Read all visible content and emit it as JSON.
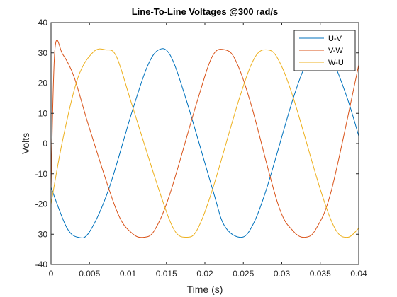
{
  "chart_data": {
    "type": "line",
    "title": "Line-To-Line Voltages @300 rad/s",
    "xlabel": "Time (s)",
    "ylabel": "Volts",
    "xlim": [
      0,
      0.04
    ],
    "ylim": [
      -40,
      40
    ],
    "xticks": [
      0,
      0.005,
      0.01,
      0.015,
      0.02,
      0.025,
      0.03,
      0.035,
      0.04
    ],
    "xtick_labels": [
      "0",
      "0.005",
      "0.01",
      "0.015",
      "0.02",
      "0.025",
      "0.03",
      "0.035",
      "0.04"
    ],
    "yticks": [
      -40,
      -30,
      -20,
      -10,
      0,
      10,
      20,
      30,
      40
    ],
    "ytick_labels": [
      "-40",
      "-30",
      "-20",
      "-10",
      "0",
      "10",
      "20",
      "30",
      "40"
    ],
    "grid": false,
    "legend_position": "top-right",
    "series": [
      {
        "name": "U-V",
        "color": "#0072BD",
        "x": [
          0,
          0.002,
          0.0035,
          0.005,
          0.0075,
          0.0105,
          0.0125,
          0.014,
          0.0155,
          0.0175,
          0.021,
          0.0225,
          0.0245,
          0.026,
          0.028,
          0.0315,
          0.0335,
          0.035,
          0.0365,
          0.0385,
          0.04
        ],
        "y": [
          -14.5,
          -27.6,
          -31.0,
          -29.2,
          -15.1,
          10.3,
          25.4,
          31.0,
          29.2,
          15.1,
          -15.1,
          -27.0,
          -31.0,
          -28.0,
          -15.1,
          15.1,
          28.0,
          31.0,
          28.0,
          15.1,
          2.5
        ]
      },
      {
        "name": "V-W",
        "color": "#D95319",
        "x": [
          0,
          0.0005,
          0.0015,
          0.003,
          0.005,
          0.0085,
          0.0105,
          0.0121,
          0.0135,
          0.0155,
          0.019,
          0.021,
          0.0226,
          0.024,
          0.026,
          0.0295,
          0.0315,
          0.0331,
          0.0345,
          0.0365,
          0.04
        ],
        "y": [
          -15.0,
          31.0,
          29.6,
          22.0,
          5.0,
          -22.0,
          -29.6,
          -31.0,
          -28.5,
          -16.3,
          14.0,
          29.0,
          31.0,
          27.5,
          13.0,
          -20.0,
          -29.0,
          -31.0,
          -28.0,
          -15.0,
          26.0
        ]
      },
      {
        "name": "W-U",
        "color": "#EDB120",
        "x": [
          0,
          0.0015,
          0.0035,
          0.0055,
          0.0071,
          0.0085,
          0.0105,
          0.014,
          0.016,
          0.0176,
          0.019,
          0.021,
          0.0245,
          0.0265,
          0.0281,
          0.0295,
          0.0315,
          0.035,
          0.037,
          0.0386,
          0.04
        ],
        "y": [
          -20.0,
          1.0,
          21.8,
          30.3,
          31.0,
          28.8,
          13.0,
          -15.1,
          -28.5,
          -31.0,
          -28.5,
          -15.1,
          15.1,
          28.5,
          31.0,
          28.0,
          15.1,
          -15.1,
          -28.5,
          -31.0,
          -28.0
        ]
      }
    ]
  }
}
